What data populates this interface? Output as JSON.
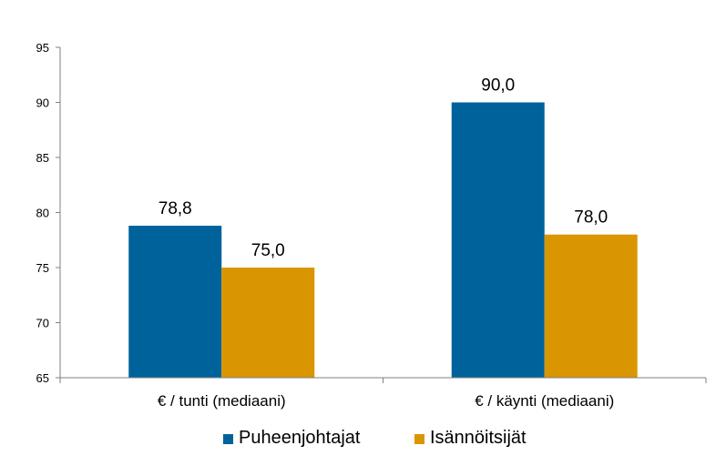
{
  "chart_data": {
    "type": "bar",
    "categories": [
      "€ / tunti (mediaani)",
      "€ / käynti (mediaani)"
    ],
    "series": [
      {
        "name": "Puheenjohtajat",
        "values": [
          78.8,
          90.0
        ],
        "value_labels": [
          "78,8",
          "90,0"
        ],
        "color": "#00629B"
      },
      {
        "name": "Isännöitsijät",
        "values": [
          75.0,
          78.0
        ],
        "value_labels": [
          "75,0",
          "78,0"
        ],
        "color": "#DA9600"
      }
    ],
    "ylim": [
      65,
      95
    ],
    "yticks": [
      65,
      70,
      75,
      80,
      85,
      90,
      95
    ],
    "ytick_labels": [
      "65",
      "70",
      "75",
      "80",
      "85",
      "90",
      "95"
    ],
    "title": "",
    "xlabel": "",
    "ylabel": "",
    "grid": false,
    "legend_position": "bottom"
  }
}
